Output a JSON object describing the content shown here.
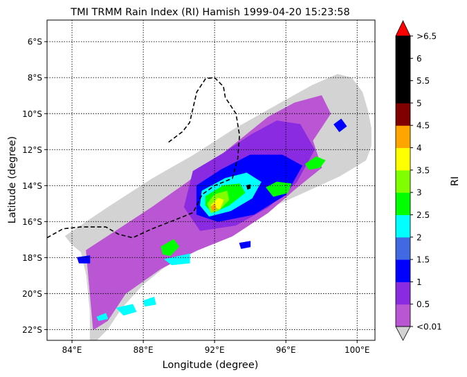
{
  "chart_data": {
    "type": "heatmap",
    "title": "TMI TRMM Rain Index (RI) Hamish 1999-04-20 15:23:58",
    "xlabel": "Longitude (degree)",
    "ylabel": "Latitude (degree)",
    "xlim": [
      82.6,
      101.0
    ],
    "ylim": [
      -22.6,
      -4.8
    ],
    "xticks": [
      84,
      88,
      92,
      96,
      100
    ],
    "xtick_labels": [
      "84°E",
      "88°E",
      "92°E",
      "96°E",
      "100°E"
    ],
    "yticks": [
      -6,
      -8,
      -10,
      -12,
      -14,
      -16,
      -18,
      -20,
      -22
    ],
    "ytick_labels": [
      "6°S",
      "8°S",
      "10°S",
      "12°S",
      "14°S",
      "16°S",
      "18°S",
      "20°S",
      "22°S"
    ],
    "grid": true,
    "colorbar": {
      "label": "RI",
      "bounds": [
        0.01,
        0.5,
        1,
        1.5,
        2,
        2.5,
        3,
        3.5,
        4,
        4.5,
        5,
        5.5,
        6,
        6.5
      ],
      "tick_labels": [
        "<0.01",
        "0.5",
        "1",
        "1.5",
        "2",
        "2.5",
        "3",
        "3.5",
        "4",
        "4.5",
        "5",
        "5.5",
        "6",
        ">6.5"
      ],
      "colors": [
        "#BA55D3",
        "#8A2BE2",
        "#0000FF",
        "#4169E1",
        "#00FFFF",
        "#00FF00",
        "#7FFF00",
        "#FFFF00",
        "#FFA500",
        "#800000",
        "#000000",
        "#000000",
        "#000000"
      ],
      "under_color": "#D3D3D3",
      "over_color": "#FF0000"
    },
    "swath_color": "#D3D3D3",
    "swath_outline": [
      [
        84.5,
        -17.7
      ],
      [
        84.0,
        -17.3
      ],
      [
        83.6,
        -16.8
      ],
      [
        86.0,
        -15.2
      ],
      [
        88.5,
        -13.6
      ],
      [
        90.8,
        -12.3
      ],
      [
        93.0,
        -10.9
      ],
      [
        95.5,
        -9.5
      ],
      [
        97.5,
        -8.4
      ],
      [
        98.9,
        -7.8
      ],
      [
        99.7,
        -8.0
      ],
      [
        100.3,
        -8.8
      ],
      [
        100.6,
        -9.8
      ],
      [
        100.8,
        -10.8
      ],
      [
        100.8,
        -11.8
      ],
      [
        100.5,
        -12.6
      ],
      [
        99.0,
        -13.5
      ],
      [
        97.0,
        -14.4
      ],
      [
        95.0,
        -15.3
      ],
      [
        93.0,
        -16.3
      ],
      [
        91.0,
        -17.3
      ],
      [
        89.5,
        -18.3
      ],
      [
        88.0,
        -19.5
      ],
      [
        86.8,
        -20.8
      ],
      [
        86.0,
        -22.0
      ],
      [
        85.4,
        -22.6
      ],
      [
        85.0,
        -22.6
      ],
      [
        85.0,
        -21.0
      ],
      [
        84.8,
        -19.0
      ]
    ],
    "rain_regions": [
      {
        "level": 0.3,
        "poly": [
          [
            84.8,
            -17.6
          ],
          [
            86.5,
            -16.5
          ],
          [
            88.5,
            -15.2
          ],
          [
            90.5,
            -13.8
          ],
          [
            92.0,
            -12.6
          ],
          [
            93.5,
            -11.4
          ],
          [
            95.0,
            -10.2
          ],
          [
            96.5,
            -9.4
          ],
          [
            98.0,
            -9.0
          ],
          [
            98.5,
            -10.0
          ],
          [
            97.5,
            -11.5
          ],
          [
            98.0,
            -13.0
          ],
          [
            96.5,
            -14.2
          ],
          [
            95.0,
            -15.5
          ],
          [
            93.0,
            -16.8
          ],
          [
            91.0,
            -17.6
          ],
          [
            89.0,
            -18.6
          ],
          [
            87.0,
            -20.0
          ],
          [
            86.0,
            -21.5
          ],
          [
            85.2,
            -22.0
          ],
          [
            85.0,
            -19.8
          ]
        ]
      },
      {
        "level": 0.7,
        "poly": [
          [
            90.8,
            -13.2
          ],
          [
            92.5,
            -12.2
          ],
          [
            94.0,
            -11.2
          ],
          [
            95.5,
            -10.4
          ],
          [
            96.8,
            -10.6
          ],
          [
            97.6,
            -12.0
          ],
          [
            96.6,
            -13.8
          ],
          [
            95.0,
            -15.2
          ],
          [
            93.2,
            -16.2
          ],
          [
            91.2,
            -16.5
          ],
          [
            90.3,
            -15.2
          ]
        ]
      },
      {
        "level": 1.2,
        "poly": [
          [
            91.0,
            -14.0
          ],
          [
            92.4,
            -13.1
          ],
          [
            94.0,
            -12.3
          ],
          [
            95.8,
            -12.3
          ],
          [
            96.9,
            -12.9
          ],
          [
            96.0,
            -14.5
          ],
          [
            94.2,
            -15.6
          ],
          [
            92.2,
            -16.0
          ],
          [
            91.0,
            -15.6
          ]
        ]
      },
      {
        "level": 2.2,
        "poly": [
          [
            91.3,
            -14.3
          ],
          [
            92.6,
            -13.6
          ],
          [
            93.8,
            -13.3
          ],
          [
            94.6,
            -13.8
          ],
          [
            94.1,
            -14.7
          ],
          [
            92.9,
            -15.4
          ],
          [
            91.7,
            -15.7
          ],
          [
            91.2,
            -15.1
          ]
        ]
      },
      {
        "level": 2.7,
        "poly": [
          [
            91.5,
            -14.6
          ],
          [
            92.5,
            -14.0
          ],
          [
            93.4,
            -13.9
          ],
          [
            93.7,
            -14.4
          ],
          [
            92.8,
            -15.1
          ],
          [
            91.9,
            -15.5
          ],
          [
            91.5,
            -15.1
          ]
        ]
      },
      {
        "level": 3.2,
        "poly": [
          [
            91.6,
            -15.0
          ],
          [
            92.0,
            -14.5
          ],
          [
            92.7,
            -14.3
          ],
          [
            92.8,
            -14.8
          ],
          [
            92.2,
            -15.4
          ],
          [
            91.8,
            -15.5
          ]
        ]
      },
      {
        "level": 3.7,
        "poly": [
          [
            91.8,
            -15.1
          ],
          [
            92.2,
            -14.7
          ],
          [
            92.5,
            -14.8
          ],
          [
            92.3,
            -15.3
          ]
        ]
      },
      {
        "level": 4.2,
        "poly": [
          [
            91.8,
            -15.2
          ],
          [
            92.0,
            -15.0
          ],
          [
            92.1,
            -15.3
          ],
          [
            91.9,
            -15.4
          ]
        ]
      },
      {
        "level": 2.7,
        "poly": [
          [
            94.9,
            -14.1
          ],
          [
            95.5,
            -13.8
          ],
          [
            96.3,
            -13.9
          ],
          [
            96.1,
            -14.4
          ],
          [
            95.3,
            -14.6
          ]
        ]
      },
      {
        "level": 2.7,
        "poly": [
          [
            97.1,
            -12.8
          ],
          [
            97.7,
            -12.4
          ],
          [
            98.2,
            -12.6
          ],
          [
            97.9,
            -13.0
          ],
          [
            97.3,
            -13.1
          ]
        ]
      },
      {
        "level": 2.7,
        "poly": [
          [
            89.0,
            -17.4
          ],
          [
            89.7,
            -17.0
          ],
          [
            90.0,
            -17.4
          ],
          [
            89.5,
            -17.9
          ],
          [
            89.1,
            -17.8
          ]
        ]
      },
      {
        "level": 2.2,
        "poly": [
          [
            89.2,
            -18.1
          ],
          [
            90.6,
            -17.8
          ],
          [
            90.6,
            -18.3
          ],
          [
            89.6,
            -18.4
          ]
        ]
      },
      {
        "level": 2.2,
        "poly": [
          [
            86.5,
            -20.8
          ],
          [
            87.4,
            -20.6
          ],
          [
            87.6,
            -21.0
          ],
          [
            86.9,
            -21.2
          ]
        ]
      },
      {
        "level": 2.2,
        "poly": [
          [
            88.0,
            -20.4
          ],
          [
            88.6,
            -20.2
          ],
          [
            88.7,
            -20.6
          ],
          [
            88.1,
            -20.7
          ]
        ]
      },
      {
        "level": 2.2,
        "poly": [
          [
            85.4,
            -21.3
          ],
          [
            85.9,
            -21.1
          ],
          [
            86.0,
            -21.4
          ],
          [
            85.5,
            -21.5
          ]
        ]
      },
      {
        "level": 1.2,
        "poly": [
          [
            84.3,
            -18.0
          ],
          [
            85.0,
            -17.9
          ],
          [
            85.0,
            -18.3
          ],
          [
            84.4,
            -18.3
          ]
        ]
      },
      {
        "level": 1.2,
        "poly": [
          [
            98.7,
            -10.6
          ],
          [
            99.1,
            -10.3
          ],
          [
            99.4,
            -10.7
          ],
          [
            99.0,
            -11.0
          ]
        ]
      },
      {
        "level": 1.2,
        "poly": [
          [
            93.4,
            -17.2
          ],
          [
            94.0,
            -17.1
          ],
          [
            94.0,
            -17.4
          ],
          [
            93.5,
            -17.5
          ]
        ]
      },
      {
        "level": 5.2,
        "poly": [
          [
            93.8,
            -14.0
          ],
          [
            94.0,
            -13.95
          ],
          [
            94.0,
            -14.15
          ],
          [
            93.85,
            -14.2
          ]
        ]
      }
    ],
    "track": [
      [
        82.6,
        -16.9
      ],
      [
        83.5,
        -16.4
      ],
      [
        84.5,
        -16.3
      ],
      [
        85.9,
        -16.3
      ],
      [
        86.6,
        -16.7
      ],
      [
        87.4,
        -16.9
      ],
      [
        88.5,
        -16.4
      ],
      [
        89.8,
        -15.9
      ],
      [
        90.8,
        -15.5
      ],
      [
        91.3,
        -14.5
      ],
      [
        92.0,
        -14.0
      ],
      [
        93.0,
        -13.6
      ],
      [
        93.3,
        -12.5
      ],
      [
        93.4,
        -11.2
      ],
      [
        93.2,
        -10.0
      ],
      [
        92.6,
        -9.1
      ],
      [
        92.5,
        -8.5
      ],
      [
        92.0,
        -8.0
      ],
      [
        91.5,
        -8.05
      ],
      [
        91.0,
        -8.8
      ],
      [
        90.6,
        -10.5
      ],
      [
        90.2,
        -11.0
      ],
      [
        89.4,
        -11.6
      ]
    ]
  }
}
